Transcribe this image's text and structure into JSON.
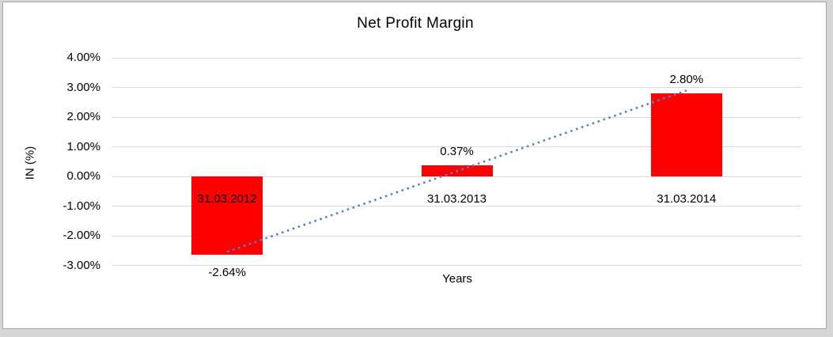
{
  "chart_data": {
    "type": "bar",
    "title": "Net Profit Margin",
    "xlabel": "Years",
    "ylabel": "IN (%)",
    "categories": [
      "31.03.2012",
      "31.03.2013",
      "31.03.2014"
    ],
    "series": [
      {
        "name": "Net Profit Margin",
        "values": [
          -2.64,
          0.37,
          2.8
        ],
        "data_labels": [
          "-2.64%",
          "0.37%",
          "2.80%"
        ]
      }
    ],
    "y_ticks": [
      "4.00%",
      "3.00%",
      "2.00%",
      "1.00%",
      "0.00%",
      "-1.00%",
      "-2.00%",
      "-3.00%"
    ],
    "ylim": [
      -3,
      4
    ],
    "grid": true,
    "legend_position": "none",
    "trendline": {
      "type": "linear",
      "style": "dotted"
    }
  },
  "colors": {
    "bar": "#FF0000",
    "trendline": "#4E87C8",
    "gridline": "#D9D9D9",
    "text": "#000000",
    "frame_border": "#A6A6A6",
    "page_background": "#D6D6D6",
    "plot_background": "#FFFFFF"
  }
}
